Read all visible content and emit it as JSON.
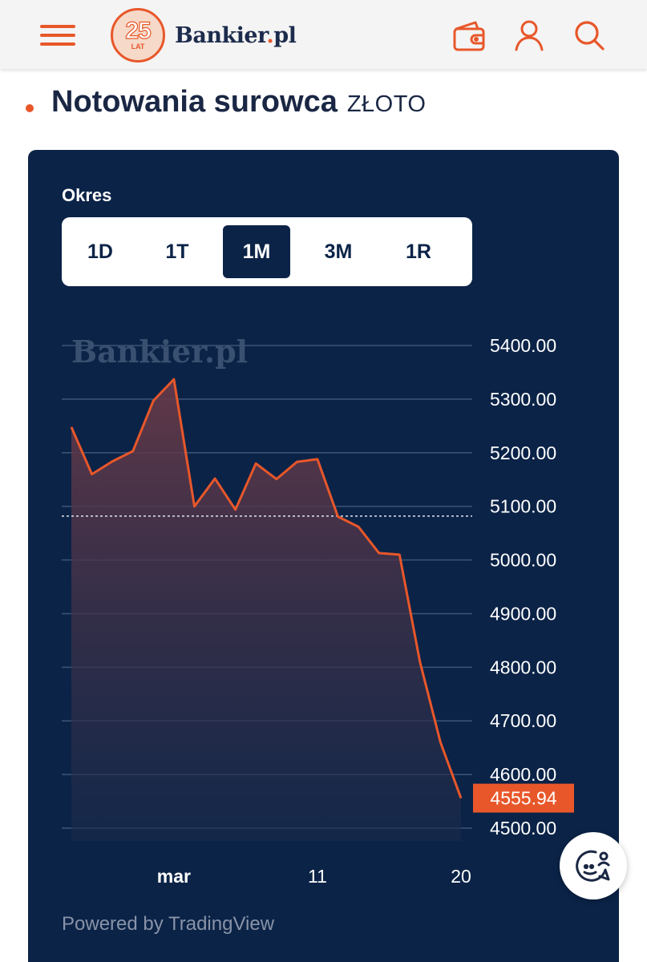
{
  "header": {
    "logo_badge_number": "25",
    "logo_badge_sub": "LAT",
    "logo_name": "Bankier",
    "logo_dot": ".",
    "logo_tld": "pl",
    "icons": [
      "menu-icon",
      "wallet-icon",
      "user-icon",
      "search-icon"
    ],
    "accent_color": "#e8572a"
  },
  "page": {
    "title": "Notowania surowca",
    "commodity": "ZŁOTO"
  },
  "chart_panel": {
    "period_label": "Okres",
    "periods": [
      "1D",
      "1T",
      "1M",
      "3M",
      "1R"
    ],
    "selected_period": "1M",
    "watermark": "Bankier.pl",
    "powered_by": "Powered by TradingView",
    "background_color": "#0b2347",
    "line_color": "#e8572a"
  },
  "chart_data": {
    "type": "area",
    "title": "",
    "xlabel": "",
    "ylabel": "",
    "ylim": [
      4500,
      5400
    ],
    "y_ticks": [
      "5400.00",
      "5300.00",
      "5200.00",
      "5100.00",
      "5000.00",
      "4900.00",
      "4800.00",
      "4700.00",
      "4600.00",
      "4500.00"
    ],
    "x_ticks": [
      {
        "label": "mar",
        "index": 5,
        "bold": true
      },
      {
        "label": "11",
        "index": 12,
        "bold": false
      },
      {
        "label": "20",
        "index": 19,
        "bold": false
      }
    ],
    "series": [
      {
        "values": [
          5248,
          5160,
          5184,
          5203,
          5297,
          5337,
          5100,
          5152,
          5094,
          5180,
          5151,
          5183,
          5188,
          5081,
          5062,
          5013,
          5010,
          4810,
          4660,
          4555.94
        ]
      }
    ],
    "reference_line": 5082,
    "last_value_label": "4555.94",
    "grid": true
  }
}
